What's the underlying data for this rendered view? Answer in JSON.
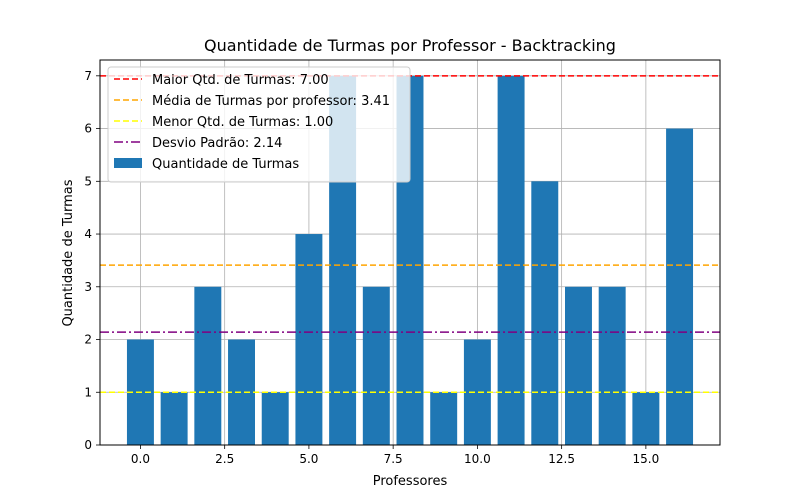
{
  "chart_data": {
    "type": "bar",
    "title": "Quantidade de Turmas por Professor - Backtracking",
    "xlabel": "Professores",
    "ylabel": "Quantidade de Turmas",
    "x": [
      0,
      1,
      2,
      3,
      4,
      5,
      6,
      7,
      8,
      9,
      10,
      11,
      12,
      13,
      14,
      15,
      16
    ],
    "values": [
      2,
      1,
      3,
      2,
      1,
      4,
      7,
      3,
      7,
      1,
      2,
      7,
      5,
      3,
      3,
      1,
      6
    ],
    "xlim": [
      -1.2,
      17.2
    ],
    "ylim": [
      0,
      7.3
    ],
    "xticks": [
      0.0,
      2.5,
      5.0,
      7.5,
      10.0,
      12.5,
      15.0
    ],
    "xtick_labels": [
      "0.0",
      "2.5",
      "5.0",
      "7.5",
      "10.0",
      "12.5",
      "15.0"
    ],
    "yticks": [
      0,
      1,
      2,
      3,
      4,
      5,
      6,
      7
    ],
    "ytick_labels": [
      "0",
      "1",
      "2",
      "3",
      "4",
      "5",
      "6",
      "7"
    ],
    "grid": true,
    "legend_position": "top-left",
    "bar_color": "#1f77b4",
    "reference_lines": [
      {
        "label": "Maior Qtd. de Turmas: 7.00",
        "y": 7.0,
        "color": "#ff0000",
        "style": "dashed"
      },
      {
        "label": "Média de Turmas por professor: 3.41",
        "y": 3.41,
        "color": "#ffa500",
        "style": "dashed"
      },
      {
        "label": "Menor Qtd. de Turmas: 1.00",
        "y": 1.0,
        "color": "#ffff00",
        "style": "dashed"
      },
      {
        "label": "Desvio Padrão: 2.14",
        "y": 2.14,
        "color": "#800080",
        "style": "dashdot"
      }
    ],
    "bar_legend_label": "Quantidade de Turmas"
  }
}
